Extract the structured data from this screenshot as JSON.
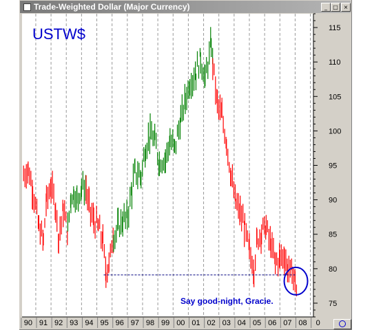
{
  "window": {
    "title": "Trade-Weighted Dollar (Major Currency)",
    "buttons": [
      "minimize",
      "maximize",
      "close"
    ]
  },
  "chart_data": {
    "type": "bar",
    "subtype": "ohlc",
    "title": "USTW$",
    "annotation": "Say good-night, Gracie.",
    "y_axis": {
      "position": "right",
      "ticks": [
        75,
        80,
        85,
        90,
        95,
        100,
        105,
        110,
        115
      ],
      "range": [
        73,
        117
      ]
    },
    "x_axis": {
      "ticks": [
        "90",
        "91",
        "92",
        "93",
        "94",
        "95",
        "96",
        "97",
        "98",
        "99",
        "00",
        "01",
        "02",
        "03",
        "04",
        "05",
        "06",
        "07",
        "08",
        "0"
      ],
      "range": [
        1989.6,
        2008.7
      ]
    },
    "grid": {
      "vertical": "dashed",
      "horizontal": false
    },
    "colors": {
      "up": "#008000",
      "down": "#ff0000",
      "annotation": "#0000cc",
      "support_line": "#000080"
    },
    "support_line": {
      "value": 79.1,
      "from": 1994.95,
      "to": 2007.6
    },
    "highlight_circle": {
      "x": 2007.55,
      "y": 78.2
    },
    "series": [
      {
        "segment": "down",
        "x": [
          1989.7,
          1990.0,
          1990.3,
          1990.7,
          1991.0
        ],
        "y": [
          93.5,
          94.5,
          91.5,
          86.0,
          84.0
        ]
      },
      {
        "segment": "down",
        "x": [
          1991.0,
          1991.2,
          1991.5,
          1991.8,
          1992.0,
          1992.3,
          1992.6
        ],
        "y": [
          84.0,
          90.0,
          92.0,
          89.0,
          84.5,
          88.5,
          85.5
        ]
      },
      {
        "segment": "up",
        "x": [
          1992.6,
          1992.8,
          1993.0,
          1993.2,
          1993.5,
          1993.8
        ],
        "y": [
          85.5,
          90.5,
          91.0,
          90.0,
          92.0,
          91.5
        ]
      },
      {
        "segment": "down",
        "x": [
          1993.8,
          1994.0,
          1994.3,
          1994.6,
          1994.9,
          1995.1,
          1995.3,
          1995.6
        ],
        "y": [
          91.5,
          89.0,
          87.0,
          86.0,
          84.0,
          79.5,
          80.5,
          85.5
        ]
      },
      {
        "segment": "up",
        "x": [
          1995.6,
          1995.9,
          1996.2,
          1996.5,
          1996.8,
          1997.0,
          1997.4,
          1997.7,
          1998.0,
          1998.3,
          1998.6,
          1999.0,
          1999.3,
          1999.6,
          2000.0,
          2000.3,
          2000.6,
          2001.0,
          2001.3,
          2001.6,
          2002.0,
          2002.1
        ],
        "y": [
          84.5,
          86.0,
          87.0,
          87.5,
          91.5,
          94.0,
          93.5,
          97.5,
          99.5,
          98.5,
          95.5,
          96.0,
          98.5,
          97.5,
          101.5,
          104.5,
          107.0,
          108.5,
          110.5,
          107.5,
          112.5,
          110.0
        ]
      },
      {
        "segment": "down",
        "x": [
          2002.1,
          2002.4,
          2002.7,
          2003.0,
          2003.3,
          2003.6,
          2003.9,
          2004.2,
          2004.5,
          2004.8,
          2005.0,
          2005.3,
          2005.6,
          2005.9,
          2006.2,
          2006.5,
          2006.8,
          2007.0,
          2007.3,
          2007.5,
          2007.6
        ],
        "y": [
          110.0,
          104.0,
          102.0,
          98.5,
          93.5,
          89.5,
          88.0,
          86.0,
          82.5,
          80.0,
          84.0,
          85.5,
          86.0,
          83.5,
          81.0,
          81.5,
          82.0,
          80.0,
          79.5,
          78.5,
          76.5
        ]
      }
    ]
  }
}
